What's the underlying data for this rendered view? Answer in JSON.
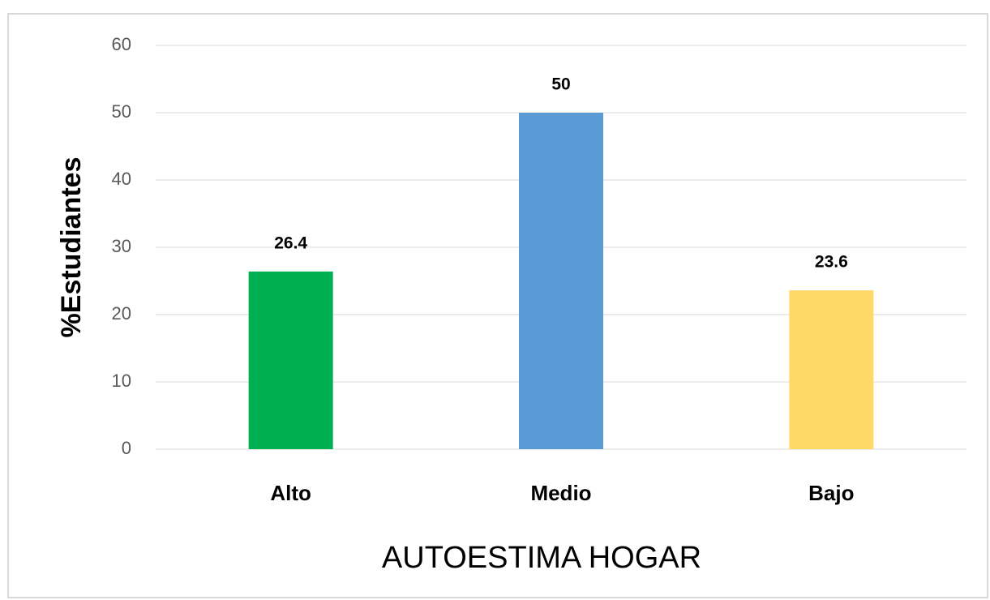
{
  "chart_data": {
    "type": "bar",
    "categories": [
      "Alto",
      "Medio",
      "Bajo"
    ],
    "values": [
      26.4,
      50,
      23.6
    ],
    "colors": [
      "#00b050",
      "#5b9bd5",
      "#ffd966"
    ],
    "xlabel": "AUTOESTIMA HOGAR",
    "ylabel": "%Estudiantes",
    "ylim": [
      0,
      60
    ],
    "yticks": [
      0,
      10,
      20,
      30,
      40,
      50,
      60
    ],
    "grid": true
  }
}
